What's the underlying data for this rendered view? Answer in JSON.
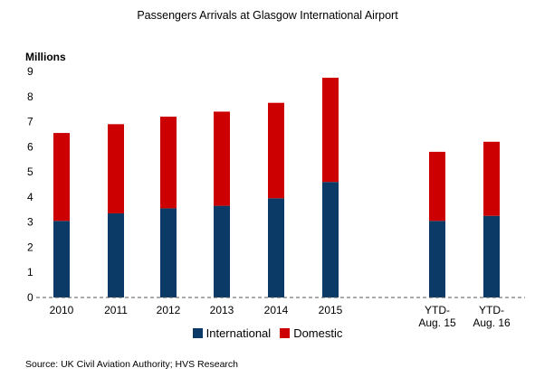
{
  "chart_data": {
    "type": "bar",
    "stacked": true,
    "title": "Passengers Arrivals at Glasgow International Airport",
    "ylabel": "Millions",
    "xlabel": "",
    "ylim": [
      0,
      9
    ],
    "yticks": [
      "0",
      "1",
      "2",
      "3",
      "4",
      "5",
      "6",
      "7",
      "8",
      "9"
    ],
    "categories": [
      "2010",
      "2011",
      "2012",
      "2013",
      "2014",
      "2015",
      "YTD-Aug. 15",
      "YTD-Aug. 16"
    ],
    "category_labels": [
      [
        "2010"
      ],
      [
        "2011"
      ],
      [
        "2012"
      ],
      [
        "2013"
      ],
      [
        "2014"
      ],
      [
        "2015"
      ],
      [
        "YTD-",
        "Aug. 15"
      ],
      [
        "YTD-",
        "Aug. 16"
      ]
    ],
    "series": [
      {
        "name": "International",
        "color": "#0b3a66",
        "values": [
          3.05,
          3.35,
          3.55,
          3.65,
          3.95,
          4.6,
          3.05,
          3.25
        ]
      },
      {
        "name": "Domestic",
        "color": "#cc0000",
        "values": [
          3.5,
          3.55,
          3.65,
          3.75,
          3.8,
          4.15,
          2.75,
          2.95
        ]
      }
    ],
    "grid": false,
    "legend_position": "bottom"
  },
  "source_text": "Source: UK Civil Aviation Authority; HVS Research"
}
